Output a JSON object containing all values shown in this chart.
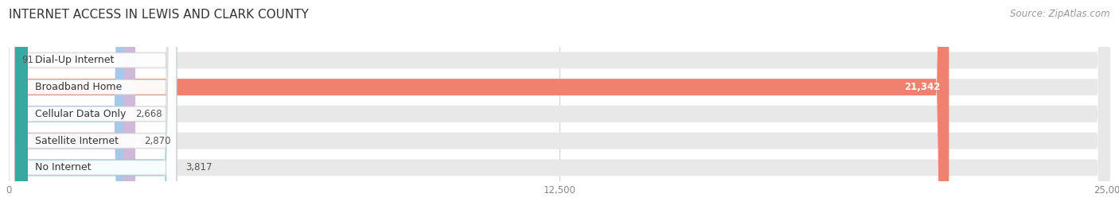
{
  "title": "INTERNET ACCESS IN LEWIS AND CLARK COUNTY",
  "source": "Source: ZipAtlas.com",
  "categories": [
    "Dial-Up Internet",
    "Broadband Home",
    "Cellular Data Only",
    "Satellite Internet",
    "No Internet"
  ],
  "values": [
    91,
    21342,
    2668,
    2870,
    3817
  ],
  "bar_colors": [
    "#f5c09a",
    "#f08070",
    "#a8c8ea",
    "#d0b8d8",
    "#72ccc8"
  ],
  "label_dot_colors": [
    "#e09050",
    "#d85040",
    "#7098c8",
    "#a870b0",
    "#38a8a0"
  ],
  "xlim": [
    0,
    25000
  ],
  "xticks": [
    0,
    12500,
    25000
  ],
  "xtick_labels": [
    "0",
    "12,500",
    "25,000"
  ],
  "value_labels": [
    "91",
    "21,342",
    "2,668",
    "2,870",
    "3,817"
  ],
  "bg_color": "#ffffff",
  "bar_bg_color": "#e8e8e8",
  "title_fontsize": 11,
  "source_fontsize": 8.5,
  "label_fontsize": 9,
  "value_fontsize": 8.5,
  "tick_fontsize": 8.5
}
